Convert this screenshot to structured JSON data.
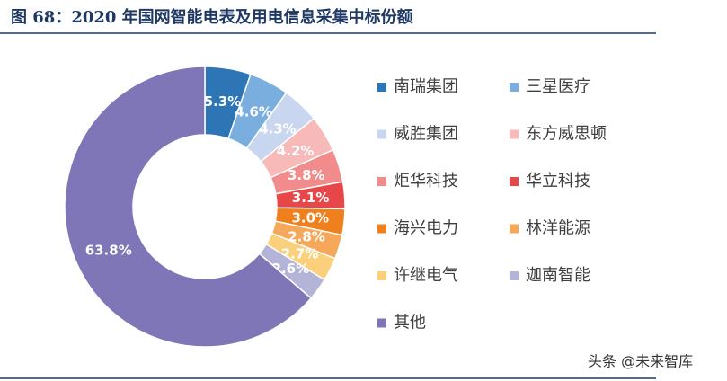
{
  "chart_data": {
    "type": "donut",
    "title": "图 68：2020 年国网智能电表及用电信息采集中标份额",
    "categories": [
      "南瑞集团",
      "三星医疗",
      "威胜集团",
      "东方威思顿",
      "炬华科技",
      "华立科技",
      "海兴电力",
      "林洋能源",
      "许继电气",
      "迦南智能",
      "其他"
    ],
    "values": [
      5.3,
      4.6,
      4.3,
      4.2,
      3.8,
      3.1,
      3.0,
      2.8,
      2.7,
      2.6,
      63.8
    ],
    "value_labels": [
      "5.3%",
      "4.6%",
      "4.3%",
      "4.2%",
      "3.8%",
      "3.1%",
      "3.0%",
      "2.8%",
      "2.7%",
      "2.6%",
      "63.8%"
    ],
    "colors": [
      "#2e75b6",
      "#7aaede",
      "#c9d6f0",
      "#f8b9b9",
      "#f28b8b",
      "#e8474a",
      "#f07f1e",
      "#f6a85a",
      "#fbd07c",
      "#b4b4d8",
      "#7f76b8"
    ],
    "watermark": "头条 @未来智库"
  }
}
